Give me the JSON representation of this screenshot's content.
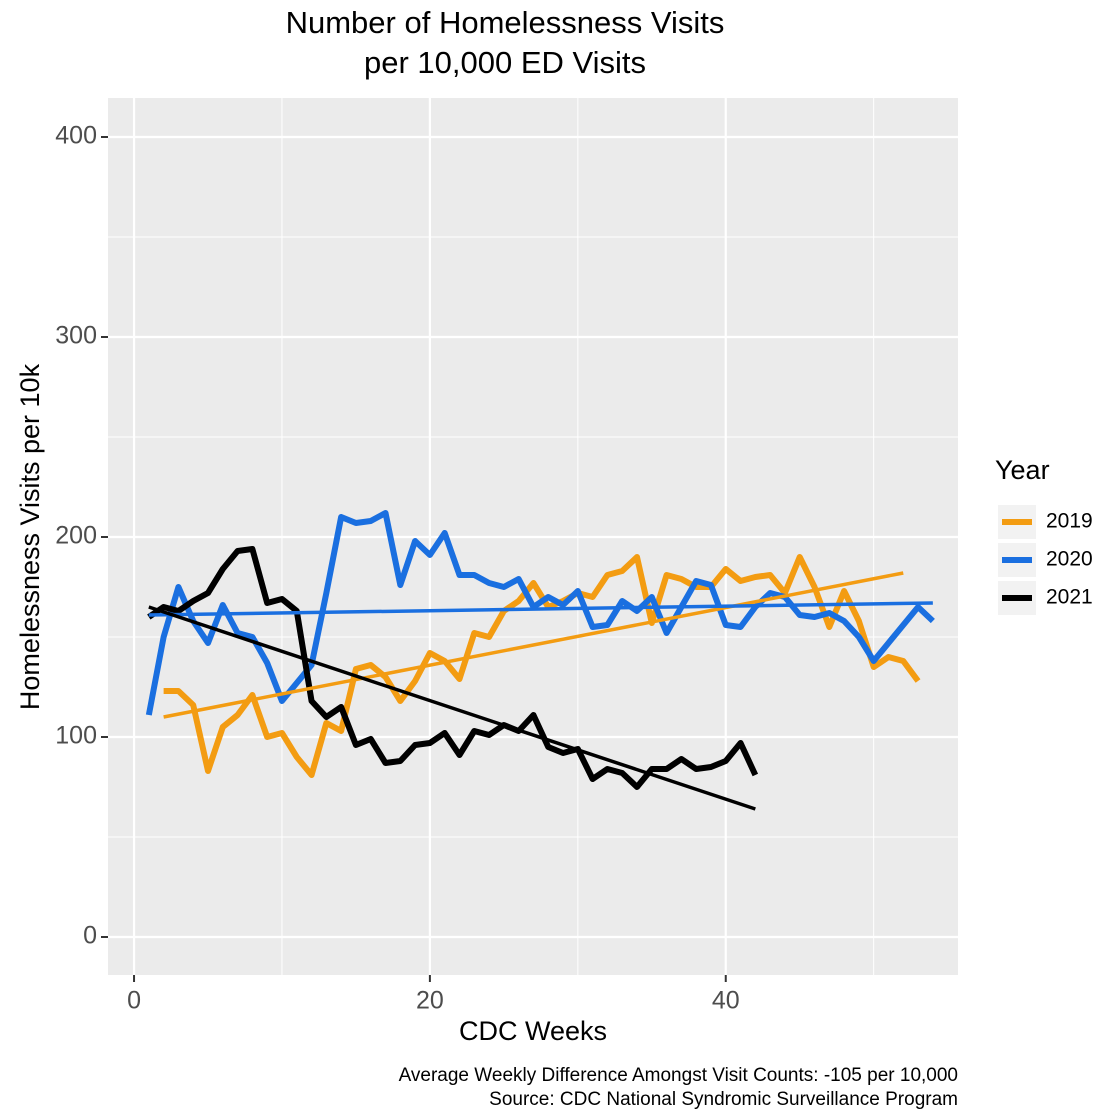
{
  "chart_data": {
    "type": "line",
    "title": "Number of Homelessness Visits",
    "subtitle": "per 10,000 ED Visits",
    "x_label": "CDC Weeks",
    "y_label": "Homelessness Visits per 10k",
    "caption": [
      "Average Weekly Difference Amongst Visit Counts: -105 per 10,000",
      "Source: CDC National Syndromic Surveillance Program"
    ],
    "legend_title": "Year",
    "legend_position": "right",
    "grid": true,
    "xlim": [
      -1.76,
      55.7
    ],
    "ylim": [
      -19,
      419.5
    ],
    "xticks": [
      0,
      20,
      40
    ],
    "yticks": [
      0,
      100,
      200,
      300,
      400
    ],
    "x_minor_gridlines": [
      10,
      30,
      50
    ],
    "y_minor_gridlines": [
      50,
      150,
      250,
      350
    ],
    "series": [
      {
        "name": "2019",
        "color": "#f39c12",
        "x": [
          2,
          3,
          4,
          5,
          6,
          7,
          8,
          9,
          10,
          11,
          12,
          13,
          14,
          15,
          16,
          17,
          18,
          19,
          20,
          21,
          22,
          23,
          24,
          25,
          26,
          27,
          28,
          29,
          30,
          31,
          32,
          33,
          34,
          35,
          36,
          37,
          38,
          39,
          40,
          41,
          42,
          43,
          44,
          45,
          46,
          47,
          48,
          49,
          50,
          51,
          52,
          53
        ],
        "values": [
          123,
          123,
          116,
          83,
          105,
          111,
          121,
          100,
          102,
          90,
          81,
          107,
          103,
          134,
          136,
          130,
          118,
          128,
          142,
          138,
          129,
          152,
          150,
          163,
          168,
          177,
          165,
          168,
          172,
          170,
          181,
          183,
          190,
          157,
          181,
          179,
          175,
          175,
          184,
          178,
          180,
          181,
          172,
          190,
          175,
          155,
          173,
          158,
          135,
          140,
          138,
          128
        ],
        "trend": {
          "x": [
            2,
            52
          ],
          "values": [
            110,
            182
          ]
        }
      },
      {
        "name": "2020",
        "color": "#1a6fe0",
        "x": [
          1,
          2,
          3,
          4,
          5,
          6,
          7,
          8,
          9,
          10,
          11,
          12,
          13,
          14,
          15,
          16,
          17,
          18,
          19,
          20,
          21,
          22,
          23,
          24,
          25,
          26,
          27,
          28,
          29,
          30,
          31,
          32,
          33,
          34,
          35,
          36,
          37,
          38,
          39,
          40,
          41,
          42,
          43,
          44,
          45,
          46,
          47,
          48,
          49,
          50,
          51,
          52,
          53,
          54
        ],
        "values": [
          111,
          150,
          175,
          158,
          147,
          166,
          152,
          150,
          137,
          118,
          127,
          136,
          172,
          210,
          207,
          208,
          212,
          176,
          198,
          191,
          202,
          181,
          181,
          177,
          175,
          179,
          165,
          170,
          166,
          173,
          155,
          156,
          168,
          163,
          170,
          152,
          165,
          178,
          176,
          156,
          155,
          165,
          172,
          170,
          161,
          160,
          162,
          158,
          150,
          138,
          147,
          156,
          165,
          158
        ],
        "trend": {
          "x": [
            1,
            54
          ],
          "values": [
            161,
            167
          ]
        }
      },
      {
        "name": "2021",
        "color": "#000000",
        "x": [
          1,
          2,
          3,
          4,
          5,
          6,
          7,
          8,
          9,
          10,
          11,
          12,
          13,
          14,
          15,
          16,
          17,
          18,
          19,
          20,
          21,
          22,
          23,
          24,
          25,
          26,
          27,
          28,
          29,
          30,
          31,
          32,
          33,
          34,
          35,
          36,
          37,
          38,
          39,
          40,
          41,
          42
        ],
        "values": [
          160,
          165,
          163,
          168,
          172,
          184,
          193,
          194,
          167,
          169,
          163,
          118,
          110,
          115,
          96,
          99,
          87,
          88,
          96,
          97,
          102,
          91,
          103,
          101,
          106,
          103,
          111,
          95,
          92,
          94,
          79,
          84,
          82,
          75,
          84,
          84,
          89,
          84,
          85,
          88,
          97,
          81
        ],
        "trend": {
          "x": [
            1,
            42
          ],
          "values": [
            165,
            64
          ]
        }
      }
    ]
  }
}
